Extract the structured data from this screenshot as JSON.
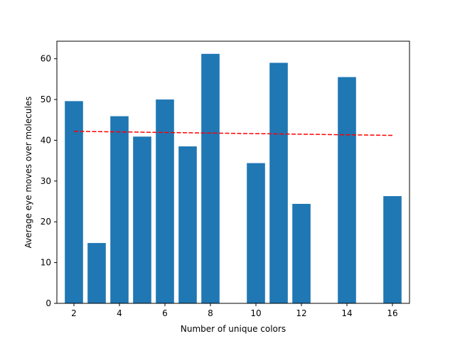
{
  "chart_data": {
    "type": "bar",
    "title": "",
    "xlabel": "Number of unique colors",
    "ylabel": "Average eye moves over molecules",
    "xlim": [
      1.25,
      16.75
    ],
    "ylim": [
      0,
      64.3
    ],
    "grid": false,
    "legend": "none",
    "x_ticks": [
      2,
      4,
      6,
      8,
      10,
      12,
      14,
      16
    ],
    "y_ticks": [
      0,
      10,
      20,
      30,
      40,
      50,
      60
    ],
    "bar_width": 0.8,
    "bar_color": "#1f77b4",
    "series": [
      {
        "x": [
          2,
          3,
          4,
          5,
          6,
          7,
          8,
          10,
          11,
          12,
          14,
          16
        ],
        "values": [
          49.6,
          14.8,
          45.9,
          40.9,
          50.0,
          38.5,
          61.2,
          34.4,
          59.0,
          24.4,
          55.5,
          26.3
        ]
      }
    ],
    "trendline": {
      "type": "line",
      "style": "dashed",
      "color": "#ff0000",
      "x": [
        2,
        16
      ],
      "values": [
        42.2,
        41.2
      ]
    }
  }
}
